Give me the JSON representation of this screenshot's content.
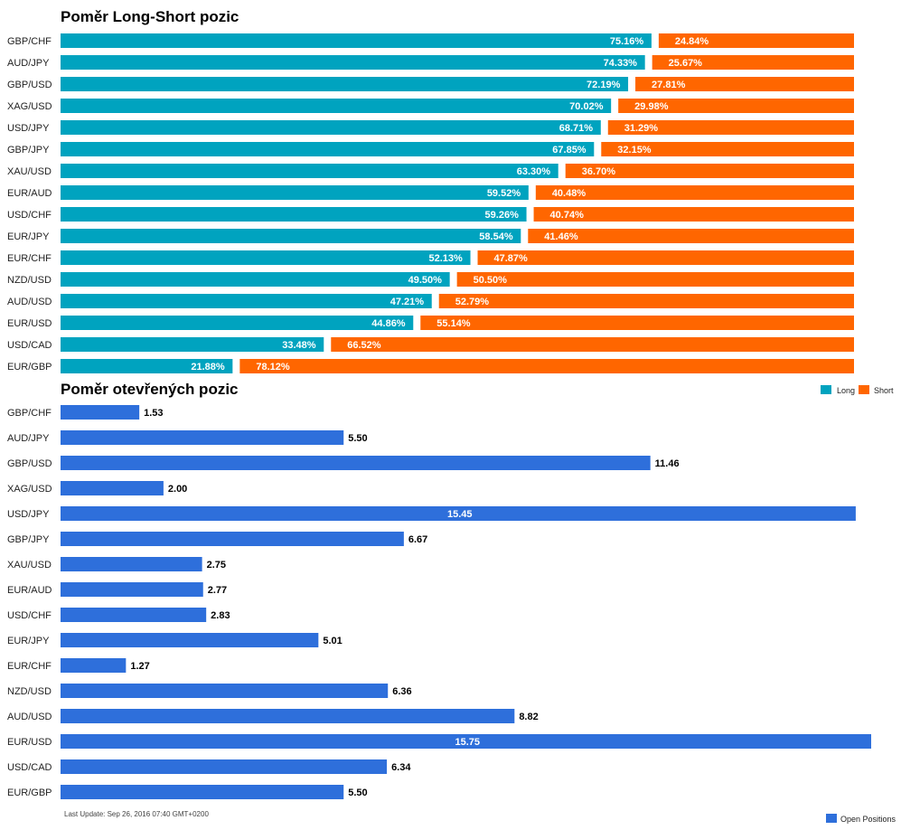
{
  "chart_data": [
    {
      "type": "bar",
      "stacked": true,
      "orientation": "horizontal",
      "title": "Poměr Long-Short pozic",
      "categories": [
        "GBP/CHF",
        "AUD/JPY",
        "GBP/USD",
        "XAG/USD",
        "USD/JPY",
        "GBP/JPY",
        "XAU/USD",
        "EUR/AUD",
        "USD/CHF",
        "EUR/JPY",
        "EUR/CHF",
        "NZD/USD",
        "AUD/USD",
        "EUR/USD",
        "USD/CAD",
        "EUR/GBP"
      ],
      "series": [
        {
          "name": "Long",
          "color": "#00a3bf",
          "values": [
            75.16,
            74.33,
            72.19,
            70.02,
            68.71,
            67.85,
            63.3,
            59.52,
            59.26,
            58.54,
            52.13,
            49.5,
            47.21,
            44.86,
            33.48,
            21.88
          ],
          "labels": [
            "75.16%",
            "74.33%",
            "72.19%",
            "70.02%",
            "68.71%",
            "67.85%",
            "63.30%",
            "59.52%",
            "59.26%",
            "58.54%",
            "52.13%",
            "49.50%",
            "47.21%",
            "44.86%",
            "33.48%",
            "21.88%"
          ]
        },
        {
          "name": "Short",
          "color": "#ff6600",
          "values": [
            24.84,
            25.67,
            27.81,
            29.98,
            31.29,
            32.15,
            36.7,
            40.48,
            40.74,
            41.46,
            47.87,
            50.5,
            52.79,
            55.14,
            66.52,
            78.12
          ],
          "labels": [
            "24.84%",
            "25.67%",
            "27.81%",
            "29.98%",
            "31.29%",
            "32.15%",
            "36.70%",
            "40.48%",
            "40.74%",
            "41.46%",
            "47.87%",
            "50.50%",
            "52.79%",
            "55.14%",
            "66.52%",
            "78.12%"
          ]
        }
      ],
      "xlim": [
        0,
        100
      ],
      "legend": "top-right"
    },
    {
      "type": "bar",
      "orientation": "horizontal",
      "title": "Poměr otevřených pozic",
      "categories": [
        "GBP/CHF",
        "AUD/JPY",
        "GBP/USD",
        "XAG/USD",
        "USD/JPY",
        "GBP/JPY",
        "XAU/USD",
        "EUR/AUD",
        "USD/CHF",
        "EUR/JPY",
        "EUR/CHF",
        "NZD/USD",
        "AUD/USD",
        "EUR/USD",
        "USD/CAD",
        "EUR/GBP"
      ],
      "series": [
        {
          "name": "Open Positions",
          "color": "#2e6fdb",
          "values": [
            1.53,
            5.5,
            11.46,
            2.0,
            15.45,
            6.67,
            2.75,
            2.77,
            2.83,
            5.01,
            1.27,
            6.36,
            8.82,
            15.75,
            6.34,
            5.5
          ],
          "labels": [
            "1.53",
            "5.50",
            "11.46",
            "2.00",
            "15.45",
            "6.67",
            "2.75",
            "2.77",
            "2.83",
            "5.01",
            "1.27",
            "6.36",
            "8.82",
            "15.75",
            "6.34",
            "5.50"
          ]
        }
      ],
      "xlim": [
        0,
        15.75
      ],
      "legend": "bottom-right"
    }
  ],
  "footer": {
    "last_update": "Last Update: Sep 26, 2016 07:40 GMT+0200"
  }
}
